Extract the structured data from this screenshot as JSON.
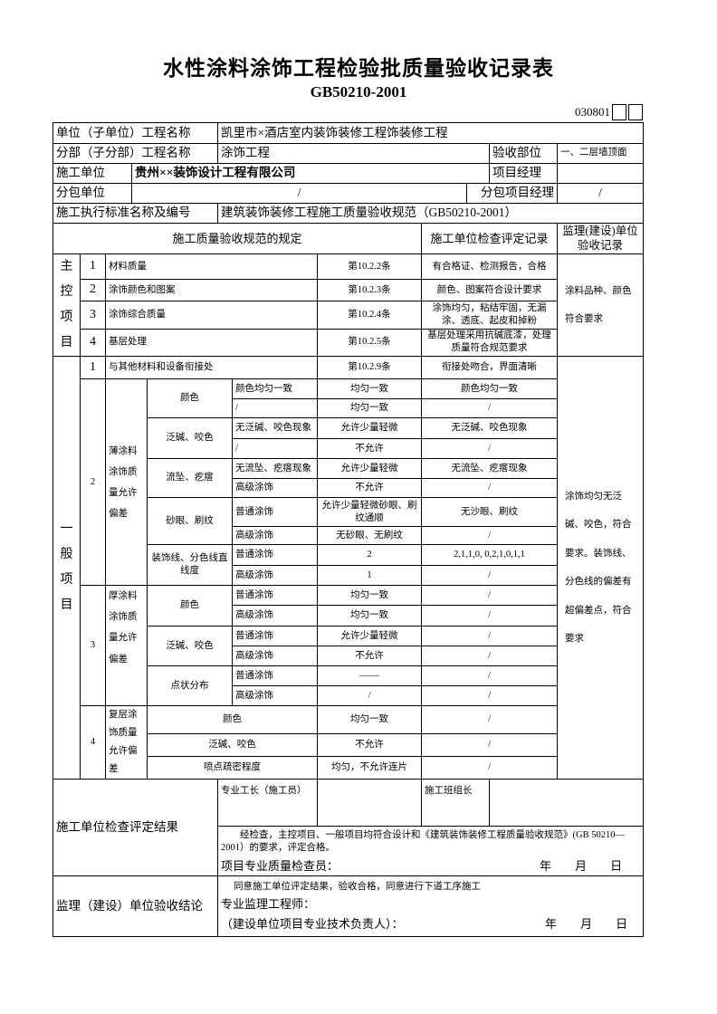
{
  "title": "水性涂料涂饰工程检验批质量验收记录表",
  "standard_code": "GB50210-2001",
  "form_number": "030801",
  "info": {
    "unit_project_label": "单位（子单位）工程名称",
    "unit_project_value": "凯里市×酒店室内装饰装修工程饰装修工程",
    "sub_project_label": "分部（子分部）工程名称",
    "sub_project_value": "涂饰工程",
    "acceptance_part_label": "验收部位",
    "acceptance_part_value": "一、二层墙顶面",
    "contractor_label": "施工单位",
    "contractor_value": "贵州××装饰设计工程有限公司",
    "project_manager_label": "项目经理",
    "project_manager_value": "",
    "subcontractor_label": "分包单位",
    "subcontractor_value": "/",
    "sub_manager_label": "分包项目经理",
    "sub_manager_value": "/",
    "standard_label": "施工执行标准名称及编号",
    "standard_value": "建筑装饰装修工程施工质量验收规范（GB50210-2001）"
  },
  "headers": {
    "spec": "施工质量验收规范的规定",
    "contractor_record": "施工单位检查评定记录",
    "supervisor_record": "监理(建设)单位验收记录"
  },
  "main_control": {
    "label": "主控项目",
    "items": [
      {
        "no": "1",
        "name": "材料质量",
        "clause": "第10.2.2条",
        "record": "有合格证、检测报告，合格"
      },
      {
        "no": "2",
        "name": "涂饰颜色和图案",
        "clause": "第10.2.3条",
        "record": "颜色、图案符合设计要求"
      },
      {
        "no": "3",
        "name": "涂饰综合质量",
        "clause": "第10.2.4条",
        "record": "涂饰均匀，粘结牢固，无漏涂、透底、起皮和掉粉"
      },
      {
        "no": "4",
        "name": "基层处理",
        "clause": "第10.2.5条",
        "record": "基层处理采用抗碱底漆，处理质量符合规范要求"
      }
    ],
    "supervisor": "涂料品种、颜色符合要求"
  },
  "general": {
    "label": "一般项目",
    "supervisor": "涂饰均匀无泛碱、咬色，符合要求。装饰线、分色线的偏差有超偏差点，符合要求",
    "item1": {
      "no": "1",
      "name": "与其他材料和设备衔接处",
      "clause": "第10.2.9条",
      "record": "衔接处吻合，界面清晰"
    },
    "sections": [
      {
        "no": "2",
        "label": "薄涂料涂饰质量允许偏差",
        "groups": [
          {
            "name": "颜色",
            "rows": [
              {
                "grade": "颜色均匀一致",
                "criterion": "均匀一致",
                "record": "颜色均匀一致"
              },
              {
                "grade": "/",
                "criterion": "均匀一致",
                "record": "/"
              }
            ]
          },
          {
            "name": "泛碱、咬色",
            "rows": [
              {
                "grade": "无泛碱、咬色现象",
                "criterion": "允许少量轻微",
                "record": "无泛碱、咬色现象"
              },
              {
                "grade": "/",
                "criterion": "不允许",
                "record": "/"
              }
            ]
          },
          {
            "name": "流坠、疙瘩",
            "rows": [
              {
                "grade": "无流坠、疙瘩现象",
                "criterion": "允许少量轻微",
                "record": "无流坠、疙瘩现象"
              },
              {
                "grade": "高级涂饰",
                "criterion": "不允许",
                "record": "/"
              }
            ]
          },
          {
            "name": "砂眼、刷纹",
            "rows": [
              {
                "grade": "普通涂饰",
                "criterion": "允许少量轻微砂眼、刷纹通顺",
                "record": "无沙眼、刷纹"
              },
              {
                "grade": "高级涂饰",
                "criterion": "无砂眼、无刷纹",
                "record": "/"
              }
            ]
          },
          {
            "name": "装饰线、分色线直线度",
            "rows": [
              {
                "grade": "普通涂饰",
                "criterion": "2",
                "record": "2,1,1,0, 0,2,1,0,1,1"
              },
              {
                "grade": "高级涂饰",
                "criterion": "1",
                "record": "/"
              }
            ]
          }
        ]
      },
      {
        "no": "3",
        "label": "厚涂料涂饰质量允许偏差",
        "groups": [
          {
            "name": "颜色",
            "rows": [
              {
                "grade": "普通涂饰",
                "criterion": "均匀一致",
                "record": "/"
              },
              {
                "grade": "高级涂饰",
                "criterion": "均匀一致",
                "record": "/"
              }
            ]
          },
          {
            "name": "泛碱、咬色",
            "rows": [
              {
                "grade": "普通涂饰",
                "criterion": "允许少量轻微",
                "record": "/"
              },
              {
                "grade": "高级涂饰",
                "criterion": "不允许",
                "record": "/"
              }
            ]
          },
          {
            "name": "点状分布",
            "rows": [
              {
                "grade": "普通涂饰",
                "criterion": "——",
                "record": "/"
              },
              {
                "grade": "高级涂饰",
                "criterion": "/",
                "record": "/"
              }
            ]
          }
        ]
      }
    ],
    "section4": {
      "no": "4",
      "label": "复层涂饰质量允许偏差",
      "rows": [
        {
          "name": "颜色",
          "criterion": "均匀一致",
          "record": "/"
        },
        {
          "name": "泛碱、咬色",
          "criterion": "不允许",
          "record": "/"
        },
        {
          "name": "喷点疏密程度",
          "criterion": "均匀，不允许连片",
          "record": "/"
        }
      ]
    }
  },
  "contractor_result": {
    "label": "施工单位检查评定结果",
    "foreman_label": "专业工长（施工员）",
    "foreman_value": "",
    "team_leader_label": "施工班组长",
    "team_leader_value": "",
    "text": "经检查，主控项目、一般项目均符合设计和《建筑装饰装修工程质量验收规范》(GB 50210—2001）的要求，评定合格。",
    "inspector_label": "项目专业质量检查员：",
    "year": "年",
    "month": "月",
    "day": "日"
  },
  "supervisor_result": {
    "label": "监理（建设）单位验收结论",
    "text": "同意施工单位评定结果，验收合格，同意进行下道工序施工",
    "engineer_label": "专业监理工程师：",
    "owner_label": "（建设单位项目专业技术负责人）：",
    "year": "年",
    "month": "月",
    "day": "日"
  }
}
